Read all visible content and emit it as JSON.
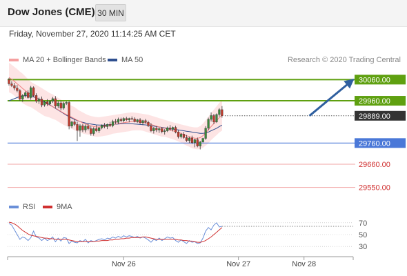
{
  "header": {
    "instrument": "Dow Jones (CME)",
    "timeframe_label": "30 MIN"
  },
  "datetime": "Friday, November 27, 2020 11:14:25 AM CET",
  "credit": "Research © 2020 Trading Central",
  "colors": {
    "ma20": "#f08080",
    "ma50": "#2f4f8f",
    "bollinger_fill": "#fde4e4",
    "candle_up": "#3a8a3a",
    "candle_down": "#c0392b",
    "resistance": "#5fa010",
    "support": "#4a78d8",
    "minor_level": "#f2a5a5",
    "rsi": "#6a8fd8",
    "rsi_ma": "#d03030",
    "arrow": "#2f5f9f",
    "current_price": "#333333"
  },
  "chart_data": [
    {
      "type": "candlestick",
      "title": "Dow Jones (CME)",
      "legend": [
        {
          "name": "MA 20 + Bollinger Bands",
          "color": "#f08080"
        },
        {
          "name": "MA 50",
          "color": "#2f4f8f"
        }
      ],
      "legend_position": "top-left",
      "x_ticks": [
        {
          "label": "Nov 26",
          "index": 42
        },
        {
          "label": "Nov 27",
          "index": 84
        },
        {
          "label": "Nov 28",
          "index": 108
        }
      ],
      "ylim": [
        29500,
        30120
      ],
      "grid": false,
      "levels": [
        {
          "value": 30060,
          "label": "30060.00",
          "kind": "resistance"
        },
        {
          "value": 29960,
          "label": "29960.00",
          "kind": "resistance"
        },
        {
          "value": 29889,
          "label": "29889.00",
          "kind": "current"
        },
        {
          "value": 29760,
          "label": "29760.00",
          "kind": "support"
        },
        {
          "value": 29660,
          "label": "29660.00",
          "kind": "minor"
        },
        {
          "value": 29550,
          "label": "29550.00",
          "kind": "minor"
        }
      ],
      "arrow": {
        "from_index": 110,
        "from_value": 29889,
        "to_index": 126,
        "to_value": 30060
      },
      "candles": [
        [
          30060,
          30068,
          30032,
          30040
        ],
        [
          30040,
          30052,
          30025,
          30032
        ],
        [
          30032,
          30045,
          30010,
          30020
        ],
        [
          30020,
          30035,
          30000,
          30008
        ],
        [
          30008,
          30015,
          29960,
          29968
        ],
        [
          29968,
          29992,
          29955,
          29985
        ],
        [
          29985,
          30005,
          29975,
          29998
        ],
        [
          29998,
          30010,
          29970,
          29975
        ],
        [
          29975,
          30030,
          29965,
          30022
        ],
        [
          30022,
          30028,
          29978,
          29985
        ],
        [
          29985,
          29995,
          29950,
          29958
        ],
        [
          29958,
          29975,
          29945,
          29968
        ],
        [
          29968,
          29980,
          29930,
          29940
        ],
        [
          29940,
          29960,
          29932,
          29955
        ],
        [
          29955,
          29968,
          29935,
          29945
        ],
        [
          29945,
          29962,
          29940,
          29958
        ],
        [
          29958,
          29978,
          29950,
          29970
        ],
        [
          29970,
          29982,
          29925,
          29935
        ],
        [
          29935,
          29958,
          29925,
          29950
        ],
        [
          29950,
          29960,
          29915,
          29925
        ],
        [
          29925,
          29955,
          29918,
          29948
        ],
        [
          29948,
          29958,
          29940,
          29952
        ],
        [
          29952,
          29960,
          29825,
          29840
        ],
        [
          29840,
          29865,
          29830,
          29860
        ],
        [
          29860,
          29872,
          29840,
          29848
        ],
        [
          29848,
          29860,
          29770,
          29820
        ],
        [
          29820,
          29850,
          29790,
          29842
        ],
        [
          29842,
          29850,
          29812,
          29822
        ],
        [
          29822,
          29848,
          29810,
          29840
        ],
        [
          29840,
          29852,
          29820,
          29828
        ],
        [
          29828,
          29840,
          29795,
          29805
        ],
        [
          29805,
          29835,
          29795,
          29828
        ],
        [
          29828,
          29845,
          29812,
          29818
        ],
        [
          29818,
          29836,
          29808,
          29832
        ],
        [
          29832,
          29848,
          29825,
          29844
        ],
        [
          29844,
          29855,
          29830,
          29838
        ],
        [
          29838,
          29852,
          29826,
          29848
        ],
        [
          29848,
          29860,
          29836,
          29842
        ],
        [
          29842,
          29870,
          29835,
          29862
        ],
        [
          29862,
          29874,
          29850,
          29858
        ],
        [
          29858,
          29880,
          29850,
          29872
        ],
        [
          29872,
          29880,
          29858,
          29866
        ],
        [
          29866,
          29882,
          29858,
          29876
        ],
        [
          29876,
          29884,
          29864,
          29870
        ],
        [
          29870,
          29880,
          29858,
          29876
        ],
        [
          29876,
          29886,
          29868,
          29874
        ],
        [
          29874,
          29882,
          29858,
          29862
        ],
        [
          29862,
          29875,
          29855,
          29870
        ],
        [
          29870,
          29878,
          29850,
          29856
        ],
        [
          29856,
          29870,
          29845,
          29866
        ],
        [
          29866,
          29874,
          29852,
          29858
        ],
        [
          29858,
          29866,
          29836,
          29842
        ],
        [
          29842,
          29855,
          29812,
          29818
        ],
        [
          29818,
          29836,
          29805,
          29830
        ],
        [
          29830,
          29840,
          29812,
          29822
        ],
        [
          29822,
          29834,
          29808,
          29828
        ],
        [
          29828,
          29836,
          29806,
          29814
        ],
        [
          29814,
          29826,
          29800,
          29818
        ],
        [
          29818,
          29838,
          29812,
          29832
        ],
        [
          29832,
          29845,
          29818,
          29825
        ],
        [
          29825,
          29838,
          29815,
          29834
        ],
        [
          29834,
          29842,
          29806,
          29812
        ],
        [
          29812,
          29820,
          29782,
          29790
        ],
        [
          29790,
          29808,
          29782,
          29802
        ],
        [
          29802,
          29812,
          29780,
          29786
        ],
        [
          29786,
          29798,
          29765,
          29772
        ],
        [
          29772,
          29790,
          29760,
          29784
        ],
        [
          29784,
          29795,
          29755,
          29762
        ],
        [
          29762,
          29780,
          29740,
          29776
        ],
        [
          29776,
          29786,
          29740,
          29746
        ],
        [
          29746,
          29770,
          29730,
          29765
        ],
        [
          29765,
          29785,
          29762,
          29782
        ],
        [
          29782,
          29840,
          29775,
          29830
        ],
        [
          29830,
          29880,
          29820,
          29872
        ],
        [
          29872,
          29905,
          29862,
          29890
        ],
        [
          29890,
          29898,
          29850,
          29860
        ],
        [
          29860,
          29900,
          29855,
          29895
        ],
        [
          29895,
          29925,
          29885,
          29918
        ],
        [
          29918,
          29935,
          29880,
          29889
        ]
      ],
      "ma20": [
        30070,
        30062,
        30052,
        30040,
        30030,
        30018,
        30008,
        29998,
        29990,
        29982,
        29974,
        29966,
        29958,
        29950,
        29944,
        29938,
        29932,
        29926,
        29918,
        29910,
        29902,
        29895,
        29888,
        29882,
        29875,
        29868,
        29862,
        29855,
        29850,
        29846,
        29842,
        29838,
        29836,
        29836,
        29838,
        29840,
        29842,
        29845,
        29848,
        29850,
        29852,
        29854,
        29856,
        29858,
        29860,
        29862,
        29862,
        29861,
        29860,
        29858,
        29855,
        29852,
        29848,
        29844,
        29840,
        29836,
        29832,
        29830,
        29826,
        29822,
        29818,
        29814,
        29810,
        29805,
        29800,
        29795,
        29790,
        29786,
        29783,
        29782,
        29786,
        29795,
        29808,
        29822,
        29838,
        29852,
        29866,
        29880,
        29892
      ],
      "bollinger_upper": [
        30140,
        30130,
        30120,
        30110,
        30098,
        30088,
        30075,
        30062,
        30050,
        30042,
        30035,
        30028,
        30020,
        30012,
        30004,
        29996,
        29990,
        29982,
        29974,
        29966,
        29958,
        29950,
        29942,
        29936,
        29930,
        29920,
        29912,
        29905,
        29898,
        29892,
        29888,
        29885,
        29883,
        29882,
        29884,
        29886,
        29888,
        29890,
        29892,
        29894,
        29896,
        29898,
        29900,
        29902,
        29904,
        29905,
        29904,
        29902,
        29900,
        29898,
        29896,
        29894,
        29890,
        29886,
        29882,
        29878,
        29874,
        29870,
        29866,
        29862,
        29858,
        29855,
        29852,
        29848,
        29845,
        29842,
        29838,
        29836,
        29834,
        29834,
        29840,
        29852,
        29868,
        29885,
        29902,
        29918,
        29934,
        29950,
        29965
      ],
      "bollinger_lower": [
        30000,
        29994,
        29984,
        29970,
        29962,
        29948,
        29941,
        29934,
        29930,
        29922,
        29913,
        29904,
        29896,
        29888,
        29884,
        29880,
        29874,
        29870,
        29862,
        29854,
        29846,
        29840,
        29834,
        29828,
        29820,
        29816,
        29812,
        29805,
        29802,
        29800,
        29796,
        29791,
        29789,
        29790,
        29792,
        29794,
        29796,
        29800,
        29804,
        29806,
        29808,
        29810,
        29812,
        29814,
        29816,
        29819,
        29820,
        29820,
        29820,
        29818,
        29814,
        29810,
        29806,
        29802,
        29798,
        29794,
        29790,
        29790,
        29786,
        29782,
        29778,
        29773,
        29768,
        29762,
        29755,
        29748,
        29742,
        29736,
        29732,
        29730,
        29732,
        29738,
        29748,
        29759,
        29774,
        29786,
        29798,
        29810,
        29819
      ],
      "ma50": [
        29960,
        29965,
        29970,
        29975,
        29980,
        29982,
        29984,
        29984,
        29982,
        29978,
        29974,
        29968,
        29962,
        29955,
        29948,
        29940,
        29932,
        29924,
        29916,
        29908,
        29900,
        29892,
        29885,
        29878,
        29872,
        29866,
        29862,
        29858,
        29855,
        29852,
        29850,
        29848,
        29846,
        29845,
        29845,
        29845,
        29846,
        29847,
        29848,
        29849,
        29850,
        29851,
        29852,
        29852,
        29852,
        29851,
        29850,
        29849,
        29848,
        29847,
        29846,
        29844,
        29842,
        29840,
        29838,
        29836,
        29834,
        29832,
        29830,
        29828,
        29826,
        29824,
        29822,
        29820,
        29818,
        29816,
        29814,
        29812,
        29810,
        29808,
        29806,
        29806,
        29808,
        29812,
        29818,
        29824,
        29830,
        29838,
        29845
      ]
    },
    {
      "type": "line",
      "legend": [
        {
          "name": "RSI",
          "color": "#6a8fd8"
        },
        {
          "name": "9MA",
          "color": "#d03030"
        }
      ],
      "legend_position": "top-left",
      "ylim": [
        15,
        85
      ],
      "y_ticks": [
        70,
        50,
        30
      ],
      "series": [
        {
          "name": "RSI",
          "values": [
            69,
            66,
            58,
            50,
            42,
            46,
            44,
            40,
            45,
            56,
            46,
            44,
            40,
            44,
            40,
            42,
            46,
            38,
            44,
            39,
            45,
            44,
            35,
            39,
            37,
            36,
            40,
            38,
            42,
            36,
            40,
            38,
            40,
            42,
            43,
            41,
            44,
            43,
            46,
            44,
            47,
            45,
            48,
            46,
            48,
            47,
            45,
            47,
            44,
            46,
            44,
            41,
            37,
            42,
            40,
            44,
            40,
            43,
            46,
            44,
            45,
            40,
            37,
            41,
            38,
            35,
            40,
            37,
            38,
            35,
            36,
            44,
            56,
            62,
            58,
            66,
            70,
            63,
            64
          ]
        },
        {
          "name": "9MA",
          "values": [
            71,
            70,
            68,
            65,
            61,
            57,
            54,
            51,
            49,
            48,
            47,
            46,
            45,
            44,
            44,
            43,
            43,
            42,
            42,
            42,
            42,
            42,
            41,
            40,
            39,
            38,
            38,
            38,
            38,
            38,
            38,
            38,
            39,
            39,
            40,
            40,
            40,
            41,
            41,
            42,
            42,
            43,
            43,
            44,
            44,
            45,
            45,
            45,
            45,
            46,
            46,
            45,
            44,
            43,
            42,
            42,
            42,
            42,
            42,
            42,
            42,
            42,
            41,
            41,
            40,
            40,
            39,
            39,
            38,
            37,
            37,
            38,
            40,
            43,
            46,
            50,
            54,
            58,
            62
          ]
        }
      ]
    }
  ]
}
